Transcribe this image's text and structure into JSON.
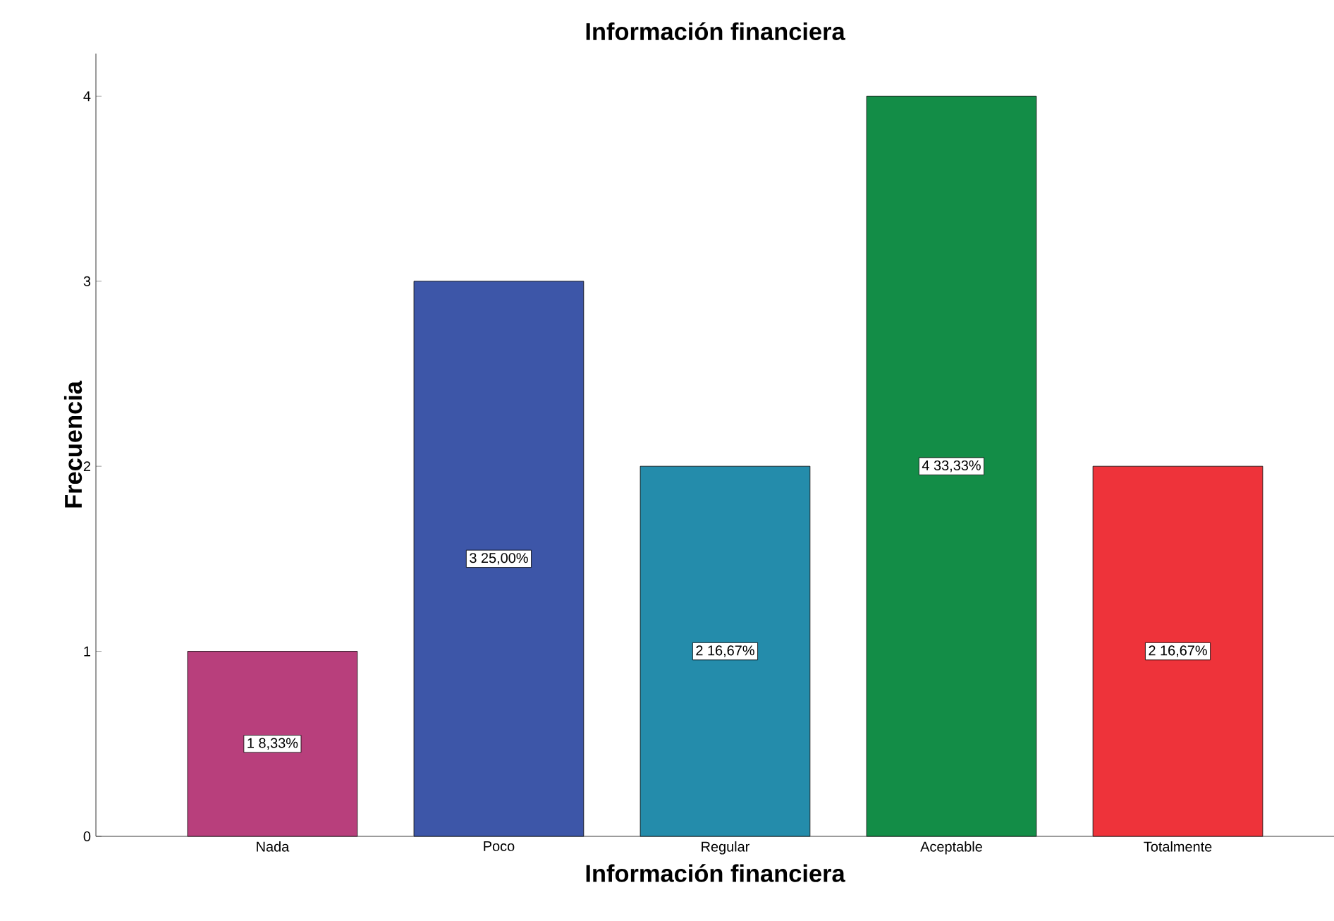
{
  "chart_data": {
    "type": "bar",
    "title": "Información financiera",
    "xlabel": "Información financiera",
    "ylabel": "Frecuencia",
    "categories": [
      "Nada",
      "Poco",
      "Regular",
      "Aceptable",
      "Totalmente"
    ],
    "values": [
      1,
      3,
      2,
      4,
      2
    ],
    "colors": [
      "#b83f7c",
      "#3d56a8",
      "#248cab",
      "#138d47",
      "#ee333a"
    ],
    "value_labels": [
      "1 8,33%",
      "3 25,00%",
      "2 16,67%",
      "4 33,33%",
      "2 16,67%"
    ],
    "ylim": [
      0,
      4.23
    ],
    "yticks": [
      0,
      1,
      2,
      3,
      4
    ],
    "grid": false
  }
}
